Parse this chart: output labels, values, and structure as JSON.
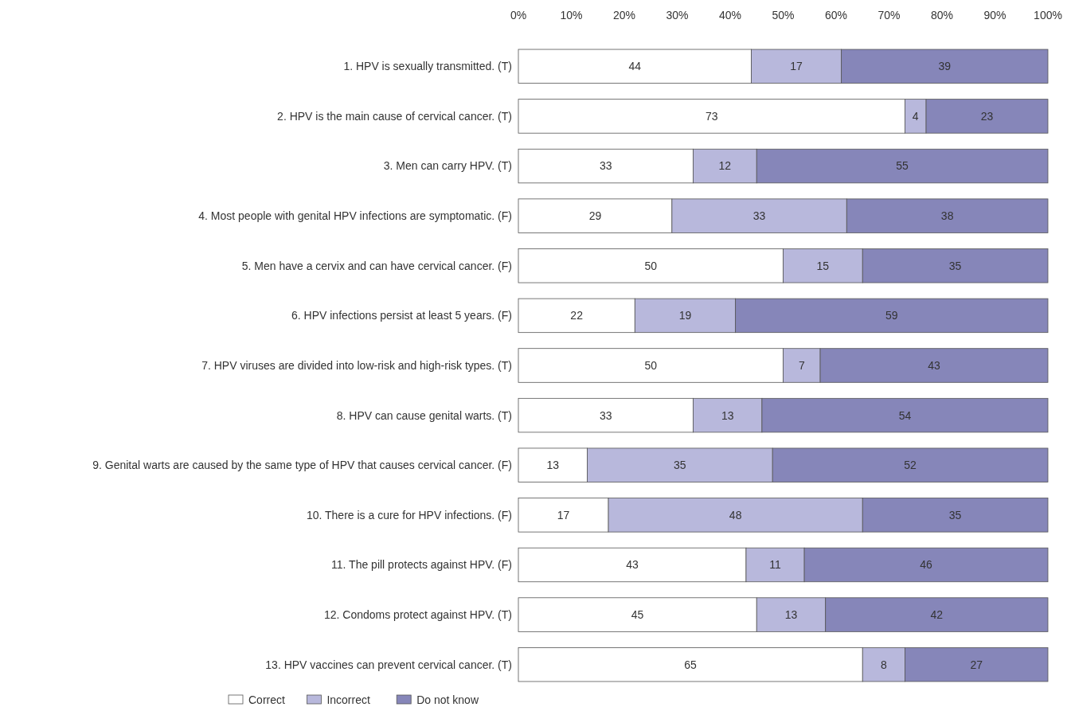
{
  "chart_data": {
    "type": "bar",
    "orientation": "horizontal",
    "stacked": true,
    "data_labels": true,
    "grid": false,
    "legend": "bottom",
    "categories": [
      "1. HPV is sexually transmitted. (T)",
      "2. HPV is the main cause of cervical cancer. (T)",
      "3. Men can carry HPV. (T)",
      "4. Most people with genital HPV infections are symptomatic. (F)",
      "5. Men have a cervix and can have cervical cancer. (F)",
      "6. HPV infections persist at least 5 years. (F)",
      "7. HPV viruses are divided into low-risk and high-risk types. (T)",
      "8. HPV can cause genital warts. (T)",
      "9. Genital warts are caused by the same type of HPV that causes cervical cancer. (F)",
      "10. There is a cure for HPV infections. (F)",
      "11. The pill protects against HPV. (F)",
      "12. Condoms protect against HPV. (T)",
      "13. HPV vaccines can prevent cervical cancer. (T)"
    ],
    "series": [
      {
        "name": "Correct",
        "color": "#ffffff",
        "values": [
          44,
          73,
          33,
          29,
          50,
          22,
          50,
          33,
          13,
          17,
          43,
          45,
          65
        ]
      },
      {
        "name": "Incorrect",
        "color": "#b8b8dc",
        "values": [
          17,
          4,
          12,
          33,
          15,
          19,
          7,
          13,
          35,
          48,
          11,
          13,
          8
        ]
      },
      {
        "name": "Do not know",
        "color": "#8686b9",
        "values": [
          39,
          23,
          55,
          38,
          35,
          59,
          43,
          54,
          52,
          35,
          46,
          42,
          27
        ]
      }
    ],
    "xlim": [
      0,
      100
    ],
    "xticks": [
      {
        "value": 0,
        "label": "0%"
      },
      {
        "value": 10,
        "label": "10%"
      },
      {
        "value": 20,
        "label": "20%"
      },
      {
        "value": 30,
        "label": "30%"
      },
      {
        "value": 40,
        "label": "40%"
      },
      {
        "value": 50,
        "label": "50%"
      },
      {
        "value": 60,
        "label": "60%"
      },
      {
        "value": 70,
        "label": "70%"
      },
      {
        "value": 80,
        "label": "80%"
      },
      {
        "value": 90,
        "label": "90%"
      },
      {
        "value": 100,
        "label": "100%"
      }
    ]
  }
}
